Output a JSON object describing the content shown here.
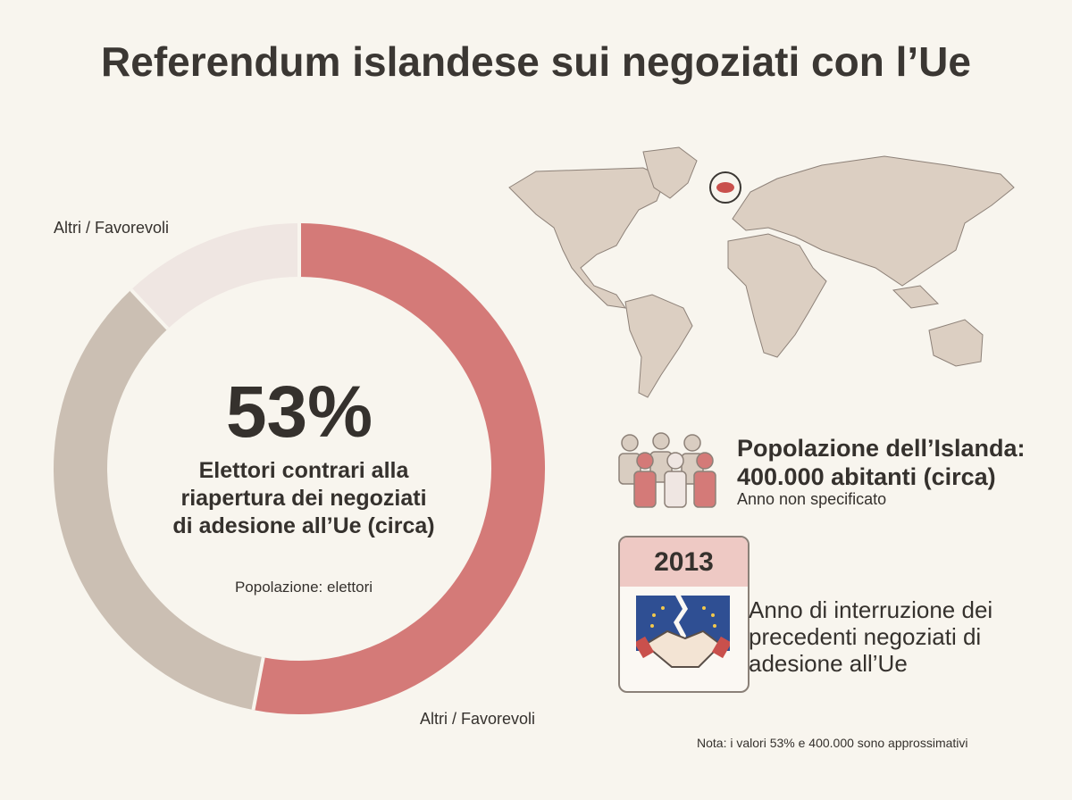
{
  "title": "Referendum islandese sui negoziati con l’Ue",
  "chart_data": {
    "type": "pie",
    "donut": true,
    "categories": [
      null,
      "Altri / Favorevoli",
      "Altri / Favorevoli"
    ],
    "values": [
      53,
      35,
      12
    ],
    "value_labels": [
      "53%",
      null,
      null
    ],
    "colors": [
      "#d47a78",
      "#cbbfb3",
      "#efe6e2"
    ],
    "center_text": "Elettori contrari alla riapertura dei negoziati di adesione all’Ue (circa)",
    "center_note": "Popolazione: elettori"
  },
  "population": {
    "title": "Popolazione dell’Islanda:",
    "value": "400.000 abitanti (circa)",
    "note": "Anno non specificato"
  },
  "calendar": {
    "year": "2013",
    "text": "Anno di interruzione dei precedenti negoziati di adesione all’Ue"
  },
  "note": "Nota: i valori 53% e 400.000 sono approssimativi"
}
